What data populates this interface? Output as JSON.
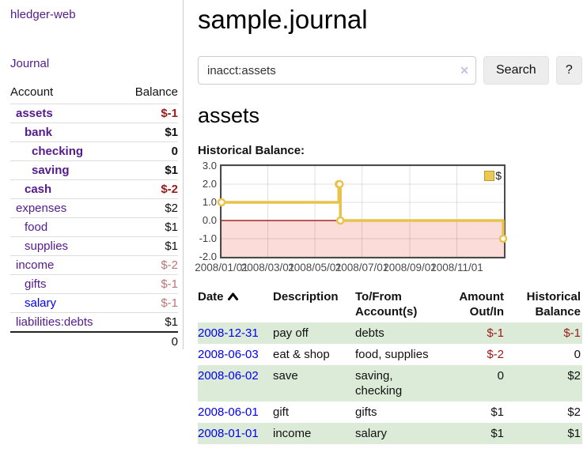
{
  "app": {
    "brand": "hledger-web",
    "nav_journal": "Journal"
  },
  "sidebar": {
    "account_header": "Account",
    "balance_header": "Balance",
    "rows": [
      {
        "account": "assets",
        "balance": "$-1",
        "depth": 1,
        "bold": true,
        "negative": "strong"
      },
      {
        "account": "bank",
        "balance": "$1",
        "depth": 2,
        "bold": true,
        "negative": "none"
      },
      {
        "account": "checking",
        "balance": "0",
        "depth": 3,
        "bold": true,
        "negative": "none"
      },
      {
        "account": "saving",
        "balance": "$1",
        "depth": 3,
        "bold": true,
        "negative": "none"
      },
      {
        "account": "cash",
        "balance": "$-2",
        "depth": 2,
        "bold": true,
        "negative": "strong"
      },
      {
        "account": "expenses",
        "balance": "$2",
        "depth": 1,
        "bold": false,
        "negative": "none"
      },
      {
        "account": "food",
        "balance": "$1",
        "depth": 2,
        "bold": false,
        "negative": "none"
      },
      {
        "account": "supplies",
        "balance": "$1",
        "depth": 2,
        "bold": false,
        "negative": "none"
      },
      {
        "account": "income",
        "balance": "$-2",
        "depth": 1,
        "bold": false,
        "negative": "dim"
      },
      {
        "account": "gifts",
        "balance": "$-1",
        "depth": 2,
        "bold": false,
        "negative": "dim"
      },
      {
        "account": "salary",
        "balance": "$-1",
        "depth": 2,
        "bold": false,
        "negative": "dim"
      },
      {
        "account": "liabilities:debts",
        "balance": "$1",
        "depth": 1,
        "bold": false,
        "negative": "none"
      }
    ],
    "total": "0"
  },
  "main": {
    "title": "sample.journal",
    "search": {
      "value": "inacct:assets",
      "clear_icon": "✕",
      "button": "Search",
      "help_button": "?"
    },
    "heading": "assets",
    "chart_label": "Historical Balance:"
  },
  "register": {
    "headers": {
      "date": "Date",
      "description": "Description",
      "accounts": "To/From Account(s)",
      "amount": "Amount Out/In",
      "balance": "Historical Balance"
    },
    "rows": [
      {
        "date": "2008-12-31",
        "description": "pay off",
        "accounts": "debts",
        "amount": "$-1",
        "balance": "$-1",
        "highlight": true
      },
      {
        "date": "2008-06-03",
        "description": "eat & shop",
        "accounts": "food, supplies",
        "amount": "$-2",
        "balance": "0",
        "highlight": false
      },
      {
        "date": "2008-06-02",
        "description": "save",
        "accounts": "saving, checking",
        "amount": "0",
        "balance": "$2",
        "highlight": true
      },
      {
        "date": "2008-06-01",
        "description": "gift",
        "accounts": "gifts",
        "amount": "$1",
        "balance": "$2",
        "highlight": false
      },
      {
        "date": "2008-01-01",
        "description": "income",
        "accounts": "salary",
        "amount": "$1",
        "balance": "$1",
        "highlight": true
      }
    ]
  },
  "chart_data": {
    "type": "line",
    "step": true,
    "title": "Historical Balance:",
    "x_domain": [
      "2008/01/01",
      "2009/01/01"
    ],
    "ylim": [
      -2,
      3
    ],
    "y_ticks": [
      "3.0",
      "2.0",
      "1.0",
      "0.0",
      "-1.0",
      "-2.0"
    ],
    "x_ticks": [
      "2008/01/01",
      "2008/03/01",
      "2008/05/01",
      "2008/07/01",
      "2008/09/01",
      "2008/11/01"
    ],
    "series": [
      {
        "name": "$",
        "color": "#e9c24c",
        "points": [
          {
            "x": "2008/01/01",
            "y": 1
          },
          {
            "x": "2008/06/01",
            "y": 2
          },
          {
            "x": "2008/06/02",
            "y": 2
          },
          {
            "x": "2008/06/03",
            "y": 0
          },
          {
            "x": "2008/12/31",
            "y": -1
          }
        ]
      }
    ],
    "legend": {
      "position": "top-right",
      "label": "$"
    },
    "grid": true,
    "negative_region_fill": "#fcdcd9",
    "zero_line_color": "#8e0000"
  },
  "colors": {
    "link_purple": "#551a8b",
    "link_blue": "#0000ee",
    "negative_strong": "#9a1a1a",
    "negative_dim": "#b97676",
    "row_highlight": "#dcebd8",
    "chart_line": "#e9c24c",
    "chart_negative_bg": "#fcdcd9"
  }
}
